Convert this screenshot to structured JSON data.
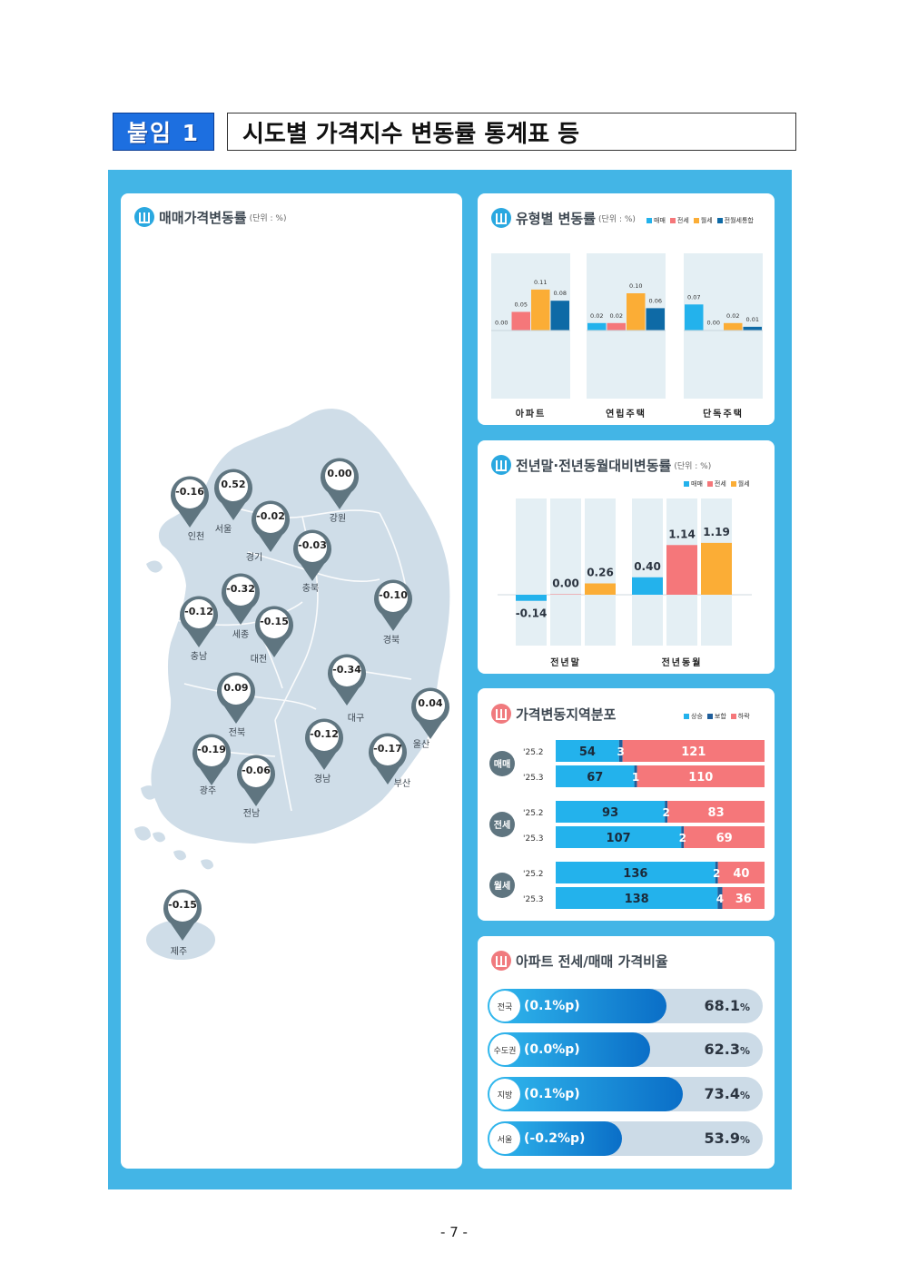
{
  "header": {
    "badge": "붙임 1",
    "title": "시도별 가격지수 변동률 통계표 등"
  },
  "map_card": {
    "title": "매매가격변동률",
    "unit": "(단위 : %)",
    "regions": [
      {
        "name": "인천",
        "value": "-0.16"
      },
      {
        "name": "서울",
        "value": "0.52"
      },
      {
        "name": "경기",
        "value": "-0.02"
      },
      {
        "name": "강원",
        "value": "0.00"
      },
      {
        "name": "충북",
        "value": "-0.03"
      },
      {
        "name": "세종",
        "value": "-0.32"
      },
      {
        "name": "충남",
        "value": "-0.12"
      },
      {
        "name": "대전",
        "value": "-0.15"
      },
      {
        "name": "경북",
        "value": "-0.10"
      },
      {
        "name": "대구",
        "value": "-0.34"
      },
      {
        "name": "전북",
        "value": "0.09"
      },
      {
        "name": "울산",
        "value": "0.04"
      },
      {
        "name": "광주",
        "value": "-0.19"
      },
      {
        "name": "경남",
        "value": "-0.12"
      },
      {
        "name": "부산",
        "value": "-0.17"
      },
      {
        "name": "전남",
        "value": "-0.06"
      },
      {
        "name": "제주",
        "value": "-0.15"
      }
    ]
  },
  "type_card": {
    "title": "유형별 변동률",
    "unit": "(단위 : %)",
    "legend": [
      "매매",
      "전세",
      "월세",
      "전월세통합"
    ]
  },
  "year_card": {
    "title": "전년말·전년동월대비변동률",
    "unit": "(단위 : %)",
    "legend": [
      "매매",
      "전세",
      "월세"
    ]
  },
  "dist_card": {
    "title": "가격변동지역분포",
    "legend": [
      "상승",
      "보합",
      "하락"
    ],
    "groups": [
      {
        "label": "매매",
        "rows": [
          {
            "period": "'25.2",
            "up": "54",
            "flat": "3",
            "down": "121"
          },
          {
            "period": "'25.3",
            "up": "67",
            "flat": "1",
            "down": "110"
          }
        ]
      },
      {
        "label": "전세",
        "rows": [
          {
            "period": "'25.2",
            "up": "93",
            "flat": "2",
            "down": "83"
          },
          {
            "period": "'25.3",
            "up": "107",
            "flat": "2",
            "down": "69"
          }
        ]
      },
      {
        "label": "월세",
        "rows": [
          {
            "period": "'25.2",
            "up": "136",
            "flat": "2",
            "down": "40"
          },
          {
            "period": "'25.3",
            "up": "138",
            "flat": "4",
            "down": "36"
          }
        ]
      }
    ]
  },
  "ratio_card": {
    "title": "아파트 전세/매매 가격비율",
    "rows": [
      {
        "region": "전국",
        "change": "(0.1%p)",
        "value": "68.1",
        "pct_unit": "%",
        "fill": 0.65
      },
      {
        "region": "수도권",
        "change": "(0.0%p)",
        "value": "62.3",
        "pct_unit": "%",
        "fill": 0.59
      },
      {
        "region": "지방",
        "change": "(0.1%p)",
        "value": "73.4",
        "pct_unit": "%",
        "fill": 0.71
      },
      {
        "region": "서울",
        "change": "(-0.2%p)",
        "value": "53.9",
        "pct_unit": "%",
        "fill": 0.49
      }
    ]
  },
  "colors": {
    "sale": "#23b2ec",
    "jeonse": "#f5777a",
    "monthly": "#fbad36",
    "combined": "#0e6aa6",
    "flat": "#1f5e9b"
  },
  "chart_data": [
    {
      "type": "bar",
      "title": "유형별 변동률",
      "categories": [
        "아파트",
        "연립주택",
        "단독주택"
      ],
      "series": [
        {
          "name": "매매",
          "values": [
            0.0,
            0.02,
            0.07
          ]
        },
        {
          "name": "전세",
          "values": [
            0.05,
            0.02,
            0.0
          ]
        },
        {
          "name": "월세",
          "values": [
            0.11,
            0.1,
            0.02
          ]
        },
        {
          "name": "전월세통합",
          "values": [
            0.08,
            0.06,
            0.01
          ]
        }
      ]
    },
    {
      "type": "bar",
      "title": "전년말·전년동월대비변동률",
      "categories": [
        "전년말",
        "전년동월"
      ],
      "series": [
        {
          "name": "매매",
          "values": [
            -0.14,
            0.4
          ]
        },
        {
          "name": "전세",
          "values": [
            0.0,
            1.14
          ]
        },
        {
          "name": "월세",
          "values": [
            0.26,
            1.19
          ]
        }
      ]
    },
    {
      "type": "bar",
      "title": "가격변동지역분포",
      "categories": [
        "매매 '25.2",
        "매매 '25.3",
        "전세 '25.2",
        "전세 '25.3",
        "월세 '25.2",
        "월세 '25.3"
      ],
      "series": [
        {
          "name": "상승",
          "values": [
            54,
            67,
            93,
            107,
            136,
            138
          ]
        },
        {
          "name": "보합",
          "values": [
            3,
            1,
            2,
            2,
            2,
            4
          ]
        },
        {
          "name": "하락",
          "values": [
            121,
            110,
            83,
            69,
            40,
            36
          ]
        }
      ]
    }
  ],
  "footer": {
    "page": "- 7 -"
  }
}
